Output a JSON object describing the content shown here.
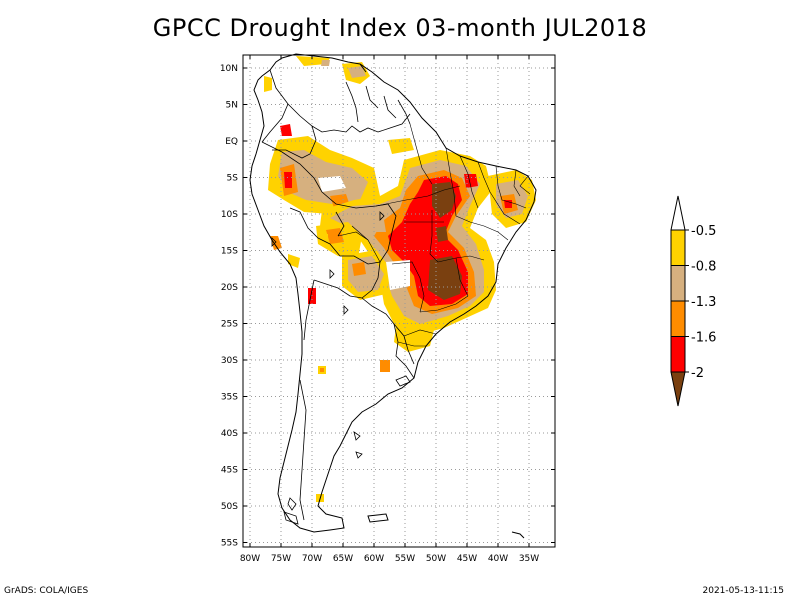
{
  "title": "GPCC Drought Index 03-month JUL2018",
  "footer": {
    "left": "GrADS: COLA/IGES",
    "right": "2021-05-13-11:15"
  },
  "axes": {
    "lat_ticks": [
      "10N",
      "5N",
      "EQ",
      "5S",
      "10S",
      "15S",
      "20S",
      "25S",
      "30S",
      "35S",
      "40S",
      "45S",
      "50S",
      "55S"
    ],
    "lon_ticks": [
      "80W",
      "75W",
      "70W",
      "65W",
      "60W",
      "55W",
      "50W",
      "45W",
      "40W",
      "35W"
    ]
  },
  "legend": {
    "labels": [
      "-0.5",
      "-0.8",
      "-1.3",
      "-1.6",
      "-2"
    ],
    "colors": [
      "#ffffff",
      "#ffd200",
      "#d6b07f",
      "#ff8c00",
      "#ff0000",
      "#7a4010"
    ]
  },
  "colors": {
    "frame": "#000000",
    "grid": "#9a9a9a",
    "coast": "#000000"
  }
}
